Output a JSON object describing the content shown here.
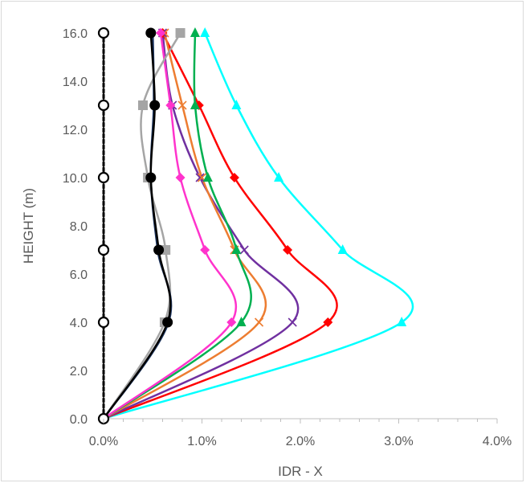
{
  "chart_data": {
    "type": "line",
    "title": "",
    "xlabel": "IDR - X",
    "ylabel": "HEIGHT (m)",
    "xlim": [
      0,
      0.04
    ],
    "ylim": [
      0,
      16
    ],
    "x_tick_labels": [
      "0.0%",
      "1.0%",
      "2.0%",
      "3.0%",
      "4.0%"
    ],
    "y_tick_labels": [
      "0.0",
      "2.0",
      "4.0",
      "6.0",
      "8.0",
      "10.0",
      "12.0",
      "14.0",
      "16.0"
    ],
    "grid": false,
    "legend": "none",
    "y": [
      0,
      4,
      7,
      10,
      13,
      16
    ],
    "series": [
      {
        "color": "#00ffff",
        "marker": "triangle",
        "values": [
          0,
          0.0303,
          0.0243,
          0.0178,
          0.0135,
          0.0103
        ]
      },
      {
        "color": "#ff0000",
        "marker": "diamond",
        "values": [
          0,
          0.0228,
          0.0187,
          0.0133,
          0.0097,
          0.006
        ]
      },
      {
        "color": "#7030a0",
        "marker": "x",
        "values": [
          0,
          0.0192,
          0.0143,
          0.0098,
          0.007,
          0.006
        ]
      },
      {
        "color": "#ed7d31",
        "marker": "x",
        "values": [
          0,
          0.0158,
          0.0133,
          0.01,
          0.008,
          0.0062
        ]
      },
      {
        "color": "#00b050",
        "marker": "triangle",
        "values": [
          0,
          0.014,
          0.0135,
          0.0106,
          0.0093,
          0.0093
        ]
      },
      {
        "color": "#ff33cc",
        "marker": "diamond",
        "values": [
          0,
          0.013,
          0.0103,
          0.0078,
          0.0068,
          0.0058
        ]
      },
      {
        "color": "#a5a5a5",
        "marker": "square",
        "values": [
          0,
          0.0062,
          0.0063,
          0.0045,
          0.004,
          0.0078
        ]
      },
      {
        "color": "#1f3864",
        "marker": "none",
        "values": [
          0,
          0.0066,
          0.0055,
          0.0048,
          0.0051,
          0.005
        ]
      },
      {
        "color": "#000000",
        "marker": "circle",
        "values": [
          0,
          0.0065,
          0.0056,
          0.0048,
          0.0052,
          0.0048
        ]
      },
      {
        "color": "#000000",
        "marker": "hollow-circle",
        "dashed": true,
        "values": [
          0,
          0,
          0,
          0,
          0,
          0
        ]
      }
    ]
  }
}
